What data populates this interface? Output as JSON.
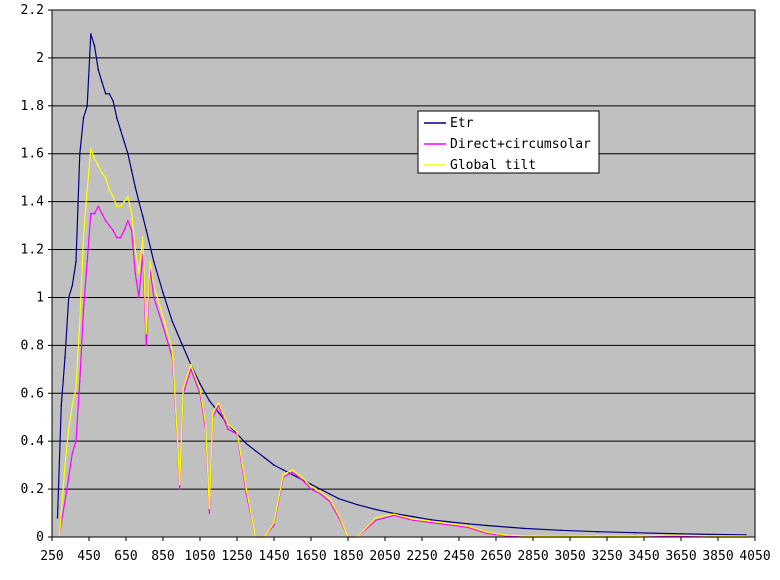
{
  "chart_data": {
    "type": "line",
    "title": "",
    "xlabel": "",
    "ylabel": "",
    "xlim": [
      250,
      4050
    ],
    "ylim": [
      0,
      2.2
    ],
    "x_ticks": [
      "250",
      "450",
      "650",
      "850",
      "1050",
      "1250",
      "1450",
      "1650",
      "1850",
      "2050",
      "2250",
      "2450",
      "2650",
      "2850",
      "3050",
      "3250",
      "3450",
      "3650",
      "3850",
      "4050"
    ],
    "y_ticks": [
      "0",
      "0.2",
      "0.4",
      "0.6",
      "0.8",
      "1",
      "1.2",
      "1.4",
      "1.6",
      "1.8",
      "2",
      "2.2"
    ],
    "grid": "horizontal",
    "plot_background": "#c0c0c0",
    "legend_position": "upper-middle-right",
    "series": [
      {
        "name": "Etr",
        "color": "#000080",
        "x": [
          280,
          300,
          320,
          340,
          360,
          380,
          400,
          420,
          440,
          460,
          480,
          500,
          520,
          540,
          560,
          580,
          600,
          620,
          640,
          660,
          680,
          700,
          720,
          740,
          760,
          800,
          850,
          900,
          950,
          1000,
          1050,
          1100,
          1150,
          1200,
          1250,
          1300,
          1350,
          1400,
          1450,
          1500,
          1550,
          1600,
          1650,
          1700,
          1750,
          1800,
          1900,
          2000,
          2100,
          2200,
          2300,
          2400,
          2500,
          2600,
          2800,
          3000,
          3200,
          3400,
          3600,
          3800,
          4000
        ],
        "y": [
          0.08,
          0.55,
          0.75,
          1.0,
          1.05,
          1.15,
          1.6,
          1.75,
          1.8,
          2.1,
          2.05,
          1.95,
          1.9,
          1.85,
          1.85,
          1.82,
          1.75,
          1.7,
          1.65,
          1.6,
          1.53,
          1.46,
          1.4,
          1.34,
          1.28,
          1.15,
          1.02,
          0.9,
          0.81,
          0.72,
          0.64,
          0.57,
          0.52,
          0.47,
          0.43,
          0.39,
          0.36,
          0.33,
          0.3,
          0.28,
          0.26,
          0.24,
          0.22,
          0.2,
          0.18,
          0.16,
          0.135,
          0.115,
          0.098,
          0.085,
          0.072,
          0.063,
          0.055,
          0.048,
          0.036,
          0.028,
          0.022,
          0.018,
          0.014,
          0.011,
          0.009
        ]
      },
      {
        "name": "Direct+circumsolar",
        "color": "#ff00ff",
        "x": [
          290,
          300,
          320,
          340,
          360,
          380,
          400,
          420,
          440,
          460,
          480,
          500,
          520,
          540,
          560,
          580,
          600,
          620,
          640,
          660,
          680,
          700,
          720,
          740,
          760,
          780,
          800,
          850,
          900,
          920,
          940,
          960,
          1000,
          1050,
          1080,
          1100,
          1120,
          1150,
          1200,
          1250,
          1300,
          1350,
          1380,
          1400,
          1450,
          1500,
          1550,
          1600,
          1650,
          1700,
          1750,
          1800,
          1850,
          1900,
          2000,
          2050,
          2100,
          2200,
          2300,
          2400,
          2500,
          2600,
          2700,
          2800,
          3000,
          3200,
          3400,
          3600,
          3800,
          4000
        ],
        "y": [
          0.0,
          0.06,
          0.15,
          0.25,
          0.35,
          0.4,
          0.65,
          0.95,
          1.15,
          1.35,
          1.35,
          1.38,
          1.35,
          1.32,
          1.3,
          1.28,
          1.25,
          1.25,
          1.28,
          1.32,
          1.28,
          1.1,
          1.0,
          1.18,
          0.8,
          1.12,
          1.0,
          0.88,
          0.75,
          0.5,
          0.2,
          0.6,
          0.7,
          0.6,
          0.45,
          0.1,
          0.5,
          0.55,
          0.45,
          0.43,
          0.18,
          0.0,
          0.0,
          0.0,
          0.05,
          0.25,
          0.27,
          0.24,
          0.2,
          0.18,
          0.15,
          0.08,
          0.0,
          0.0,
          0.07,
          0.08,
          0.09,
          0.07,
          0.06,
          0.05,
          0.04,
          0.015,
          0.005,
          0.0,
          0.0,
          0.0,
          0.0,
          0.005,
          0.0,
          0.0
        ]
      },
      {
        "name": "Global tilt",
        "color": "#ffff00",
        "x": [
          290,
          300,
          320,
          340,
          360,
          380,
          400,
          420,
          440,
          460,
          480,
          500,
          520,
          540,
          560,
          580,
          600,
          620,
          640,
          660,
          680,
          700,
          720,
          740,
          760,
          780,
          800,
          850,
          900,
          920,
          940,
          960,
          1000,
          1050,
          1080,
          1100,
          1120,
          1150,
          1200,
          1250,
          1300,
          1350,
          1380,
          1400,
          1450,
          1500,
          1550,
          1600,
          1650,
          1700,
          1750,
          1800,
          1850,
          1900,
          2000,
          2050,
          2100,
          2200,
          2300,
          2400,
          2500,
          2600,
          2700,
          2800,
          3000,
          3200,
          3400,
          3600,
          3800,
          4000
        ],
        "y": [
          0.0,
          0.1,
          0.3,
          0.45,
          0.55,
          0.62,
          0.9,
          1.25,
          1.45,
          1.62,
          1.58,
          1.55,
          1.52,
          1.5,
          1.45,
          1.42,
          1.38,
          1.38,
          1.4,
          1.42,
          1.35,
          1.2,
          1.1,
          1.25,
          0.85,
          1.15,
          1.05,
          0.92,
          0.78,
          0.52,
          0.22,
          0.62,
          0.72,
          0.62,
          0.47,
          0.12,
          0.52,
          0.56,
          0.47,
          0.44,
          0.2,
          0.0,
          0.0,
          0.0,
          0.06,
          0.26,
          0.28,
          0.25,
          0.21,
          0.19,
          0.16,
          0.09,
          0.0,
          0.0,
          0.08,
          0.09,
          0.095,
          0.075,
          0.065,
          0.055,
          0.045,
          0.02,
          0.008,
          0.005,
          0.003,
          0.005,
          0.004,
          0.008,
          0.005,
          0.004
        ]
      }
    ]
  }
}
